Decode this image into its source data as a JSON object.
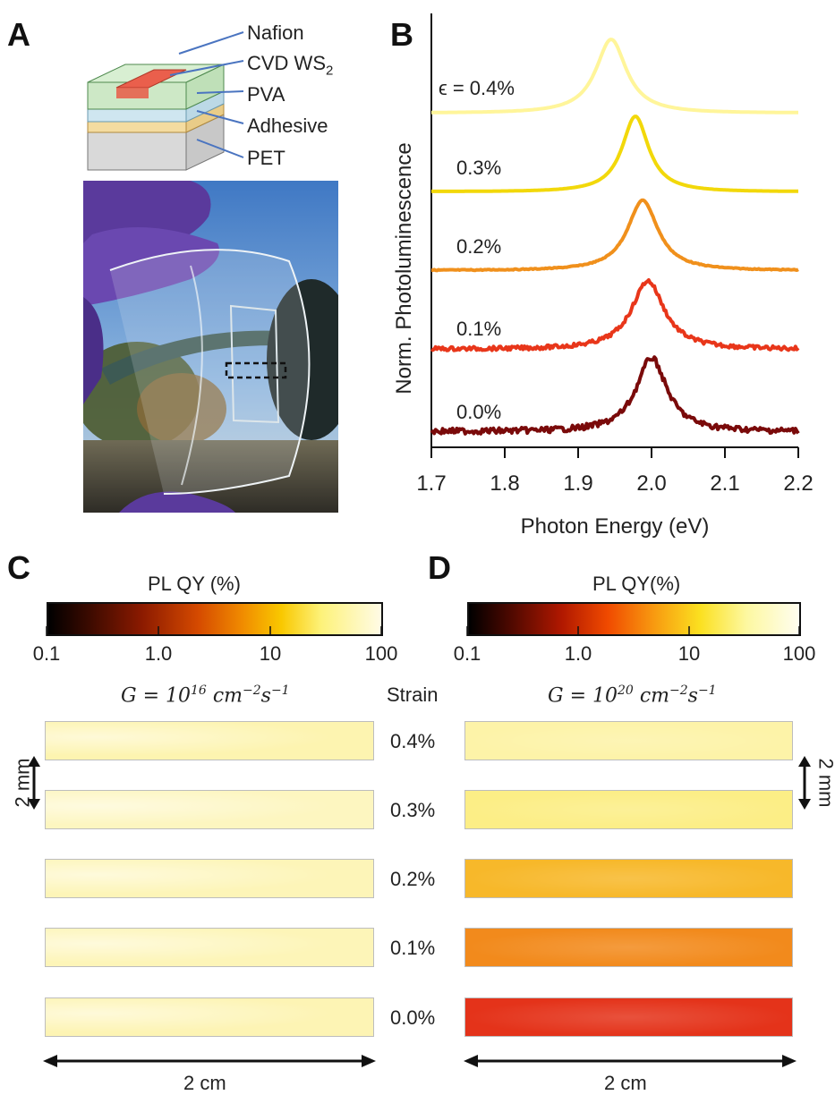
{
  "panels": {
    "a": "A",
    "b": "B",
    "c": "C",
    "d": "D"
  },
  "panel_a": {
    "layers": [
      "Nafion",
      "CVD WS",
      "PVA",
      "Adhesive",
      "PET"
    ],
    "ws2_subscript": "2"
  },
  "chart_data": {
    "type": "line",
    "xlabel": "Photon Energy (eV)",
    "ylabel": "Norm. Photoluminescence",
    "xlim": [
      1.7,
      2.2
    ],
    "x_ticks": [
      "1.7",
      "1.8",
      "1.9",
      "2.0",
      "2.1",
      "2.2"
    ],
    "series": [
      {
        "name": "ϵ = 0.4%",
        "peak_eV": 1.945,
        "width_eV": 0.03,
        "color": "#fff59a"
      },
      {
        "name": "0.3%",
        "peak_eV": 1.978,
        "width_eV": 0.026,
        "color": "#f2d80a"
      },
      {
        "name": "0.2%",
        "peak_eV": 1.988,
        "width_eV": 0.03,
        "color": "#f0901c"
      },
      {
        "name": "0.1%",
        "peak_eV": 1.995,
        "width_eV": 0.032,
        "color": "#e8361a"
      },
      {
        "name": "0.0%",
        "peak_eV": 2.0,
        "width_eV": 0.03,
        "color": "#7a0a0a"
      }
    ]
  },
  "panel_c": {
    "colorbar_title": "PL QY (%)",
    "colorbar_ticks": [
      "0.1",
      "1.0",
      "10",
      "100"
    ],
    "generation": "G = 10",
    "gen_exp": "16",
    "gen_units": "cm",
    "strain_values": [
      "0.4%",
      "0.3%",
      "0.2%",
      "0.1%",
      "0.0%"
    ],
    "strip_colors": [
      "#fdf4b0",
      "#fdf6c0",
      "#fdf5b8",
      "#fdf5b8",
      "#fdf4b4"
    ]
  },
  "panel_d": {
    "colorbar_title": "PL QY(%)",
    "colorbar_ticks": [
      "0.1",
      "1.0",
      "10",
      "100"
    ],
    "generation": "G = 10",
    "gen_exp": "20",
    "gen_units": "cm",
    "strip_colors": [
      "#fdf3a8",
      "#fcee86",
      "#f7b82a",
      "#f28a1c",
      "#e4331a"
    ]
  },
  "strain_header": "Strain",
  "scale_2cm": "2 cm",
  "scale_2mm": "2 mm",
  "colors": {
    "photo_sky": "#7ea6d8",
    "glove": "#5a3a9c"
  }
}
